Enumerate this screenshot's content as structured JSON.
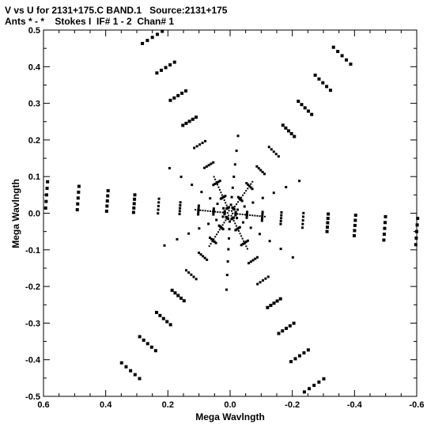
{
  "chart_data": {
    "type": "scatter",
    "title": "V vs U for 2131+175.C BAND.1   Source:2131+175",
    "subtitle": "Ants * - *    Stokes I  IF# 1 - 2  Chan# 1",
    "xlabel": "Mega Wavlngth",
    "ylabel": "Mega Wavlngth",
    "xlim": [
      0.6,
      -0.6
    ],
    "ylim": [
      -0.5,
      0.5
    ],
    "x_ticks": [
      "0.6",
      "0.4",
      "0.2",
      "0.0",
      "-0.2",
      "-0.4",
      "-0.6"
    ],
    "y_ticks": [
      "0.5",
      "0.4",
      "0.3",
      "0.2",
      "0.1",
      "0.0",
      "-0.1",
      "-0.2",
      "-0.3",
      "-0.4",
      "-0.5"
    ],
    "grid": false,
    "pattern": "six-armed Y-shaped uv coverage, point-symmetric about origin",
    "arm_ends": [
      {
        "u": 0.25,
        "v": 0.48
      },
      {
        "u": -0.36,
        "v": 0.43
      },
      {
        "u": -0.6,
        "v": -0.05
      },
      {
        "u": -0.27,
        "v": -0.47
      },
      {
        "u": 0.32,
        "v": -0.43
      },
      {
        "u": 0.59,
        "v": 0.05
      }
    ],
    "point_color": "#000000"
  }
}
